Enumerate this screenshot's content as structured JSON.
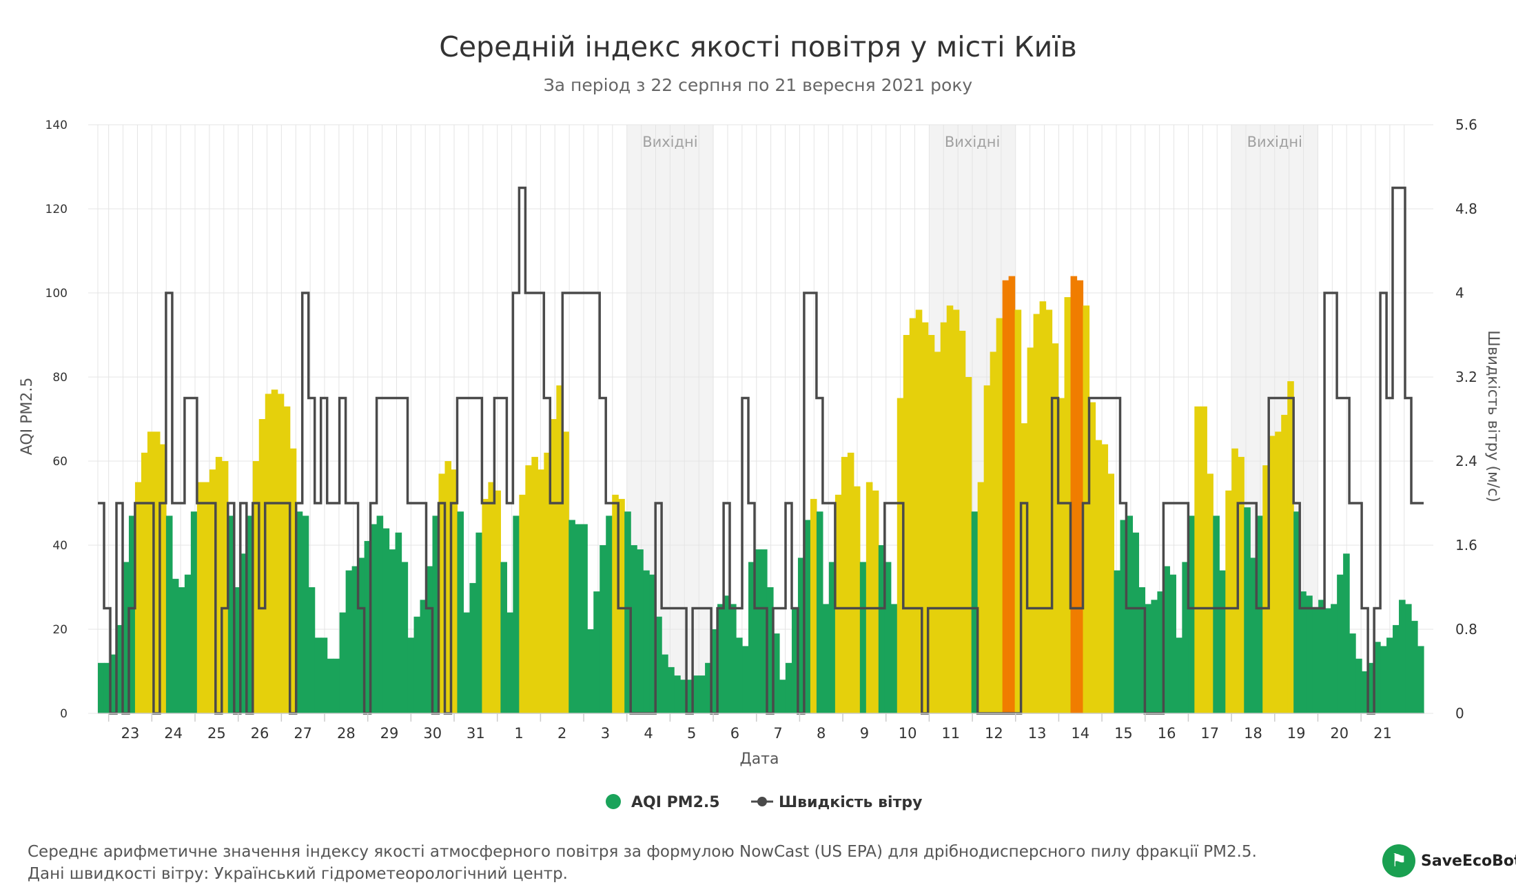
{
  "chart_data": {
    "type": "bar",
    "title": "Середній індекс якості повітря у місті Київ",
    "subtitle": "За період з 22 серпня по 21 вересня 2021 року",
    "xlabel": "Дата",
    "ylabel": "AQI PM2.5",
    "y2label": "Швидкість вітру (м/с)",
    "ylim": [
      0,
      140
    ],
    "y2lim": [
      0,
      5.6
    ],
    "yticks": [
      "0",
      "20",
      "40",
      "60",
      "80",
      "100",
      "120",
      "140"
    ],
    "y2ticks": [
      "0",
      "0.8",
      "1.6",
      "2.4",
      "3.2",
      "4",
      "4.8",
      "5.6"
    ],
    "grid": true,
    "legend_position": "bottom-center",
    "days": [
      "23",
      "24",
      "25",
      "26",
      "27",
      "28",
      "29",
      "30",
      "31",
      "1",
      "2",
      "3",
      "4",
      "5",
      "6",
      "7",
      "8",
      "9",
      "10",
      "11",
      "12",
      "13",
      "14",
      "15",
      "16",
      "17",
      "18",
      "19",
      "20",
      "21"
    ],
    "weekend_bands": [
      {
        "label": "Вихідні",
        "from_day": "4",
        "to_day": "5"
      },
      {
        "label": "Вихідні",
        "from_day": "11",
        "to_day": "12"
      },
      {
        "label": "Вихідні",
        "from_day": "18",
        "to_day": "19"
      }
    ],
    "aqi_colors": {
      "good": "#1aa35a",
      "moderate": "#e5d00c",
      "unhealthy_sensitive": "#f07d00"
    },
    "wind_color": "#4a4a4a",
    "series": [
      {
        "name": "AQI PM2.5",
        "type": "column",
        "values": [
          12,
          12,
          14,
          21,
          36,
          47,
          55,
          62,
          67,
          67,
          64,
          47,
          32,
          30,
          33,
          48,
          55,
          55,
          58,
          61,
          60,
          47,
          30,
          38,
          47,
          60,
          70,
          76,
          77,
          76,
          73,
          63,
          48,
          47,
          30,
          18,
          18,
          13,
          13,
          24,
          34,
          35,
          37,
          41,
          45,
          47,
          44,
          39,
          43,
          36,
          18,
          23,
          27,
          35,
          47,
          57,
          60,
          58,
          48,
          24,
          31,
          43,
          51,
          55,
          53,
          36,
          24,
          47,
          52,
          59,
          61,
          58,
          62,
          70,
          78,
          67,
          46,
          45,
          45,
          20,
          29,
          40,
          47,
          52,
          51,
          48,
          40,
          39,
          34,
          33,
          23,
          14,
          11,
          9,
          8,
          8,
          9,
          9,
          12,
          20,
          26,
          28,
          26,
          18,
          16,
          36,
          39,
          39,
          30,
          19,
          8,
          12,
          25,
          37,
          46,
          51,
          48,
          26,
          36,
          52,
          61,
          62,
          54,
          36,
          55,
          53,
          40,
          36,
          26,
          75,
          90,
          94,
          96,
          93,
          90,
          86,
          93,
          97,
          96,
          91,
          80,
          48,
          55,
          78,
          86,
          94,
          103,
          104,
          96,
          69,
          87,
          95,
          98,
          96,
          88,
          75,
          99,
          104,
          103,
          97,
          74,
          65,
          64,
          57,
          34,
          46,
          47,
          43,
          30,
          26,
          27,
          29,
          35,
          33,
          18,
          36,
          47,
          73,
          73,
          57,
          47,
          34,
          53,
          63,
          61,
          49,
          37,
          47,
          59,
          66,
          67,
          71,
          79,
          48,
          29,
          28,
          25,
          27,
          25,
          26,
          33,
          38,
          19,
          13,
          10,
          12,
          17,
          16,
          18,
          21,
          27,
          26,
          22,
          16
        ]
      },
      {
        "name": "Швидкість вітру",
        "type": "line",
        "values": [
          2,
          1,
          0,
          2,
          0,
          1,
          2,
          2,
          2,
          0,
          2,
          4,
          2,
          2,
          3,
          3,
          2,
          2,
          2,
          0,
          1,
          2,
          0,
          2,
          0,
          2,
          1,
          2,
          2,
          2,
          2,
          0,
          2,
          4,
          3,
          2,
          3,
          2,
          2,
          3,
          2,
          2,
          1,
          0,
          2,
          3,
          3,
          3,
          3,
          3,
          2,
          2,
          2,
          1,
          0,
          2,
          0,
          2,
          3,
          3,
          3,
          3,
          2,
          2,
          3,
          3,
          2,
          4,
          5,
          4,
          4,
          4,
          3,
          2,
          2,
          4,
          4,
          4,
          4,
          4,
          4,
          3,
          2,
          2,
          1,
          1,
          0,
          0,
          0,
          0,
          2,
          1,
          1,
          1,
          1,
          0,
          1,
          1,
          1,
          0,
          1,
          2,
          1,
          1,
          3,
          2,
          1,
          1,
          0,
          1,
          1,
          2,
          1,
          0,
          4,
          4,
          3,
          2,
          2,
          1,
          1,
          1,
          1,
          1,
          1,
          1,
          1,
          2,
          2,
          2,
          1,
          1,
          1,
          0,
          1,
          1,
          1,
          1,
          1,
          1,
          1,
          1,
          0,
          0,
          0,
          0,
          0,
          0,
          0,
          2,
          1,
          1,
          1,
          1,
          3,
          2,
          2,
          1,
          1,
          2,
          3,
          3,
          3,
          3,
          3,
          2,
          1,
          1,
          1,
          0,
          0,
          0,
          2,
          2,
          2,
          2,
          1,
          1,
          1,
          1,
          1,
          1,
          1,
          1,
          2,
          2,
          2,
          1,
          1,
          3,
          3,
          3,
          3,
          2,
          1,
          1,
          1,
          1,
          4,
          4,
          3,
          3,
          2,
          2,
          1,
          0,
          1,
          4,
          3,
          5,
          5,
          3,
          2,
          2,
          2,
          1,
          0,
          2,
          3,
          2,
          3,
          2,
          2
        ]
      }
    ]
  },
  "legend": {
    "aqi_label": "AQI PM2.5",
    "wind_label": "Швидкість вітру"
  },
  "footer": {
    "line1": "Середнє арифметичне значення індексу якості атмосферного повітря за формулою NowCast (US EPA) для дрібнодисперсного пилу фракції PM2.5.",
    "line2": "Дані швидкості вітру: Український гідрометеорологічний центр."
  },
  "brand": {
    "name": "SaveEcoBot"
  }
}
